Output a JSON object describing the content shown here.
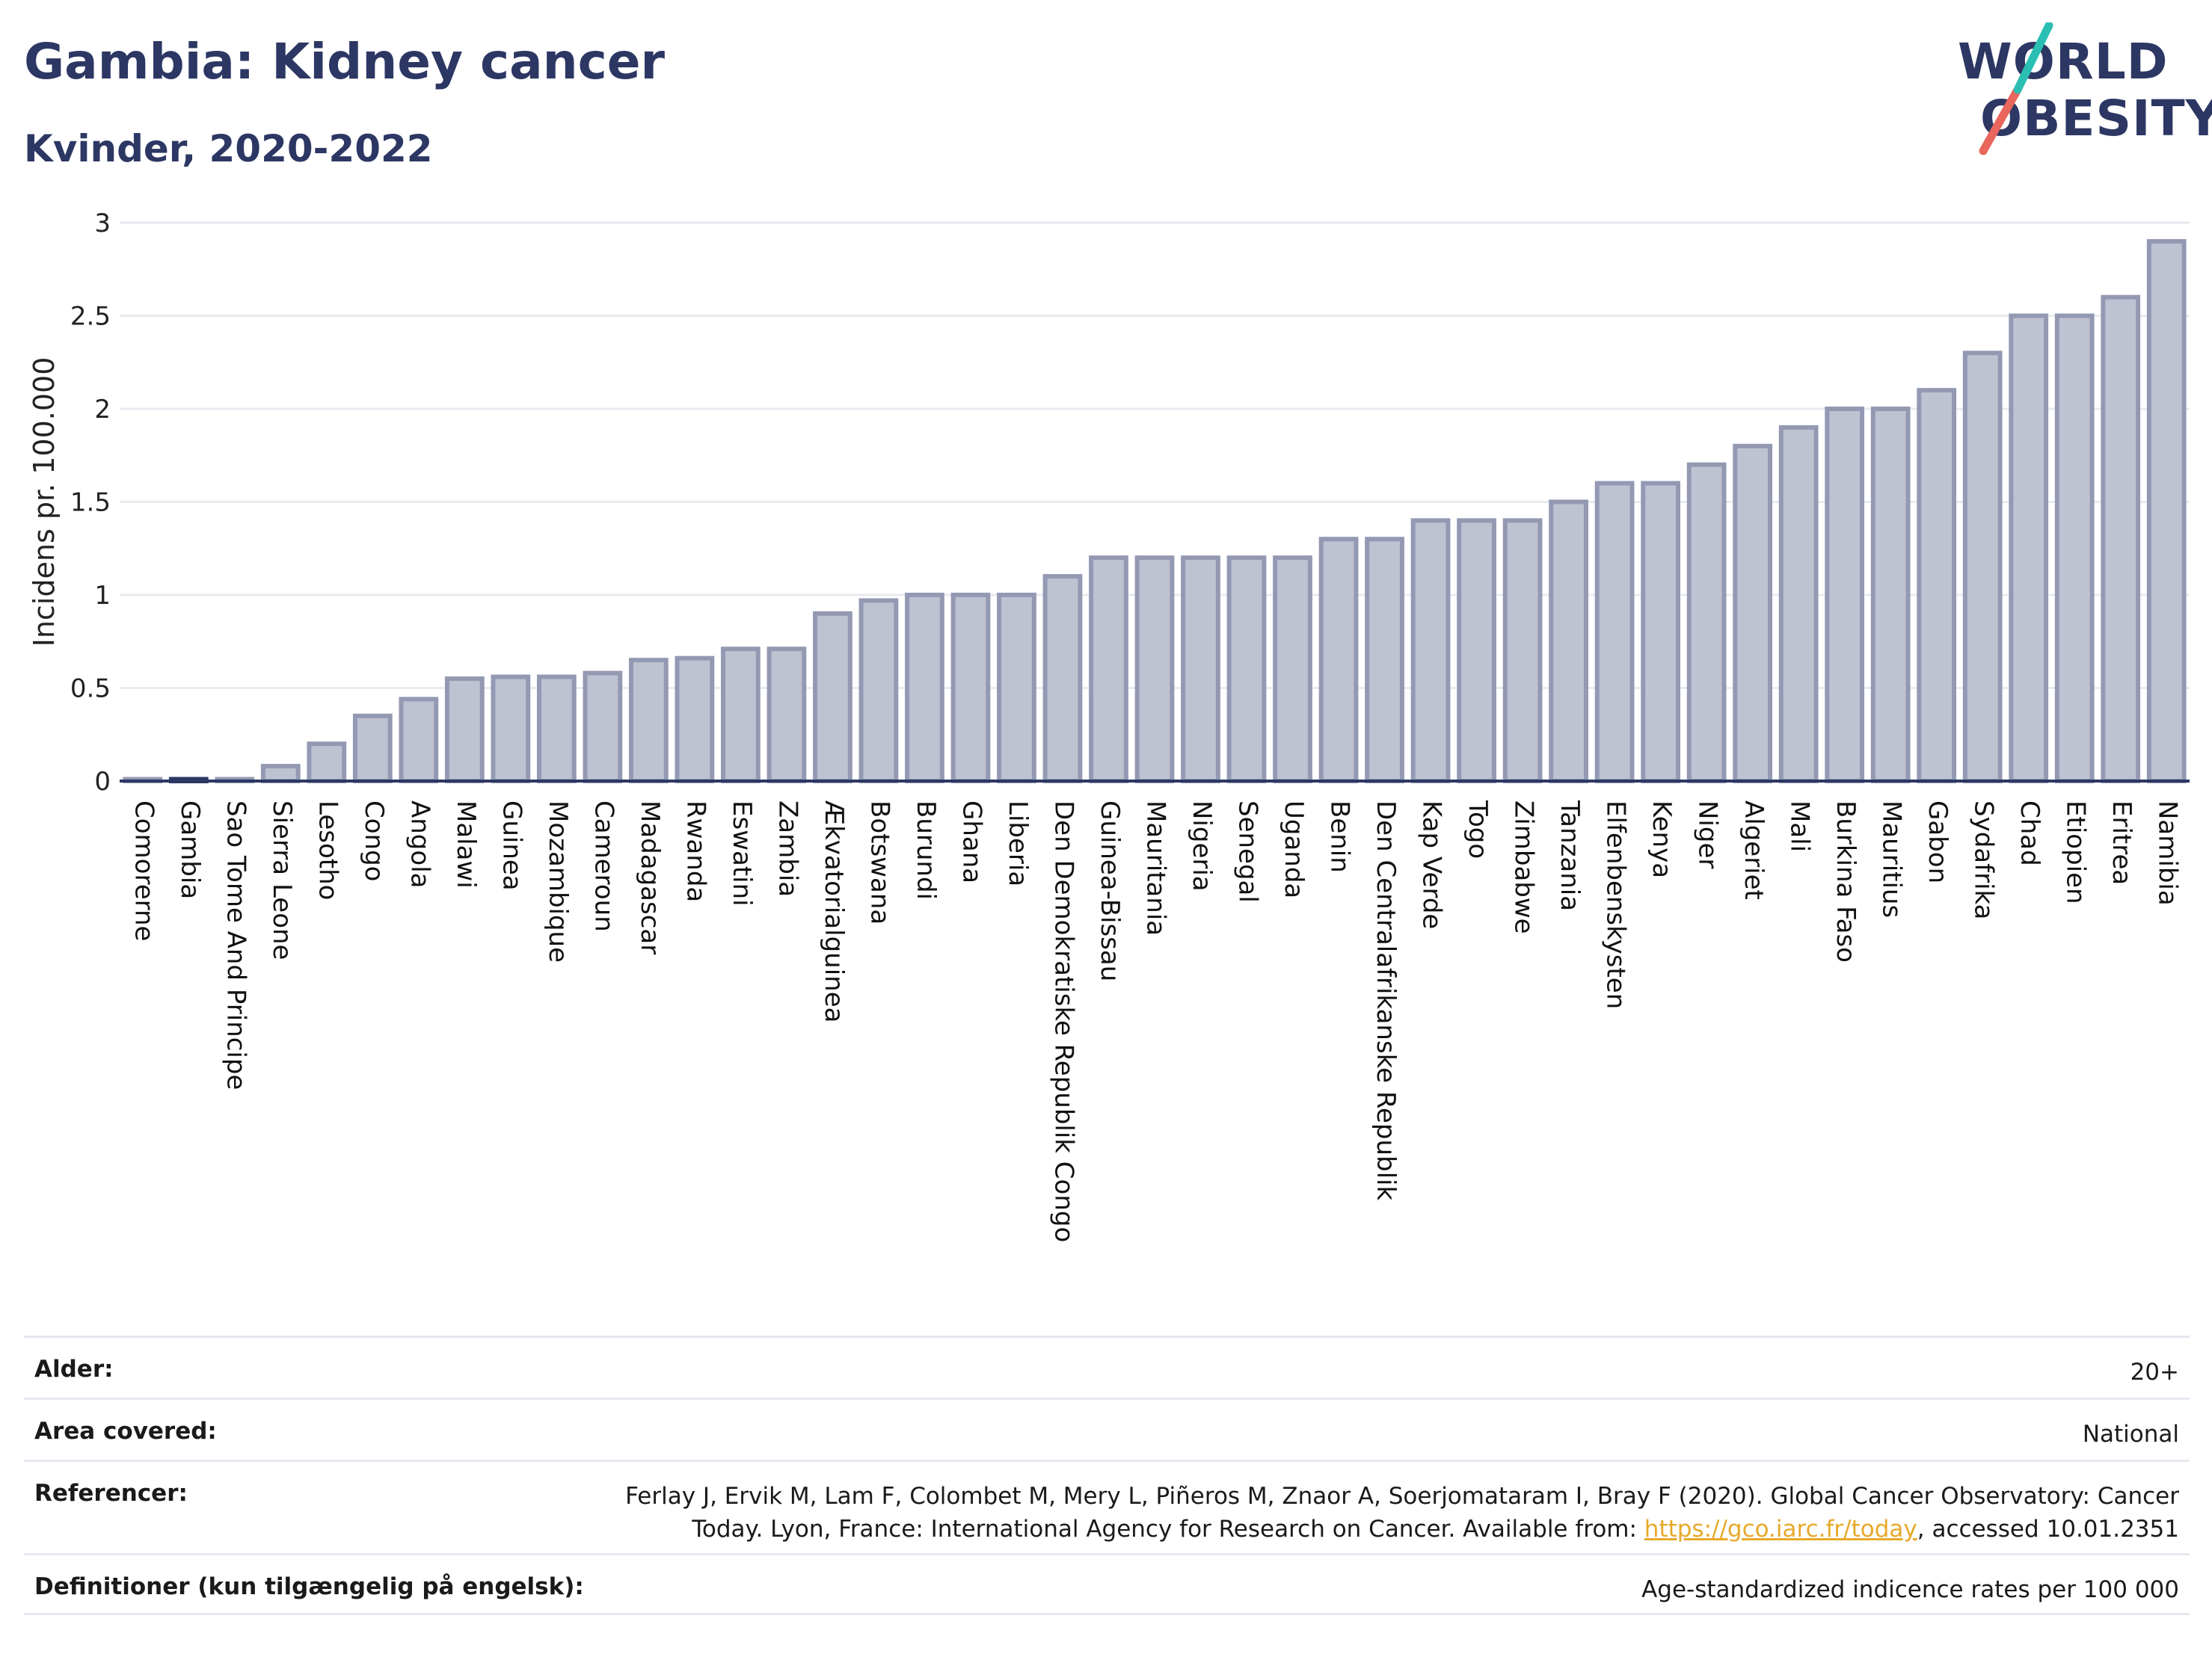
{
  "header": {
    "title": "Gambia: Kidney cancer",
    "subtitle": "Kvinder, 2020-2022"
  },
  "logo": {
    "line1": "WORLD",
    "line2": "OBESITY"
  },
  "colors": {
    "title": "#2d3764",
    "bar_fill": "#bfc3d1",
    "bar_stroke": "#9499b3",
    "highlight_bar": "#2d3764",
    "grid": "#e9eaf0",
    "logo_teal": "#2bbfb3",
    "logo_red": "#e8665c",
    "link": "#e7a92b"
  },
  "chart_data": {
    "type": "bar",
    "title": "Gambia: Kidney cancer",
    "subtitle": "Kvinder, 2020-2022",
    "xlabel": "",
    "ylabel": "Incidens pr. 100.000",
    "ylim": [
      0,
      3
    ],
    "yticks": [
      0,
      0.5,
      1,
      1.5,
      2,
      2.5,
      3
    ],
    "ytick_labels": [
      "0",
      "0.5",
      "1",
      "1.5",
      "2",
      "2.5",
      "3"
    ],
    "grid": true,
    "highlight": "Gambia",
    "categories": [
      "Comorerne",
      "Gambia",
      "Sao Tome And Principe",
      "Sierra Leone",
      "Lesotho",
      "Congo",
      "Angola",
      "Malawi",
      "Guinea",
      "Mozambique",
      "Cameroun",
      "Madagascar",
      "Rwanda",
      "Eswatini",
      "Zambia",
      "Ækvatorialguinea",
      "Botswana",
      "Burundi",
      "Ghana",
      "Liberia",
      "Den Demokratiske Republik Congo",
      "Guinea-Bissau",
      "Mauritania",
      "Nigeria",
      "Senegal",
      "Uganda",
      "Benin",
      "Den Centralafrikanske Republik",
      "Kap Verde",
      "Togo",
      "Zimbabwe",
      "Tanzania",
      "Elfenbenskysten",
      "Kenya",
      "Niger",
      "Algeriet",
      "Mali",
      "Burkina Faso",
      "Mauritius",
      "Gabon",
      "Sydafrika",
      "Chad",
      "Etiopien",
      "Eritrea",
      "Namibia"
    ],
    "values": [
      0.01,
      0.01,
      0.01,
      0.08,
      0.2,
      0.35,
      0.44,
      0.55,
      0.56,
      0.56,
      0.58,
      0.65,
      0.66,
      0.71,
      0.71,
      0.9,
      0.97,
      1.0,
      1.0,
      1.0,
      1.1,
      1.2,
      1.2,
      1.2,
      1.2,
      1.2,
      1.3,
      1.3,
      1.4,
      1.4,
      1.4,
      1.5,
      1.6,
      1.6,
      1.7,
      1.8,
      1.9,
      2.0,
      2.0,
      2.1,
      2.3,
      2.5,
      2.5,
      2.6,
      2.9
    ]
  },
  "meta": {
    "age_label": "Alder:",
    "age_value": "20+",
    "area_label": "Area covered:",
    "area_value": "National",
    "ref_label": "Referencer:",
    "ref_line1": "Ferlay J, Ervik M, Lam F, Colombet M, Mery L, Piñeros M, Znaor A, Soerjomataram I, Bray F (2020). Global Cancer Observatory: Cancer",
    "ref_line2_pre": "Today. Lyon, France: International Agency for Research on Cancer. Available from: ",
    "ref_link": "https://gco.iarc.fr/today",
    "ref_line2_post": ", accessed 10.01.2351",
    "def_label": "Definitioner (kun tilgængelig på engelsk):",
    "def_value": "Age-standardized indicence rates per 100 000"
  }
}
